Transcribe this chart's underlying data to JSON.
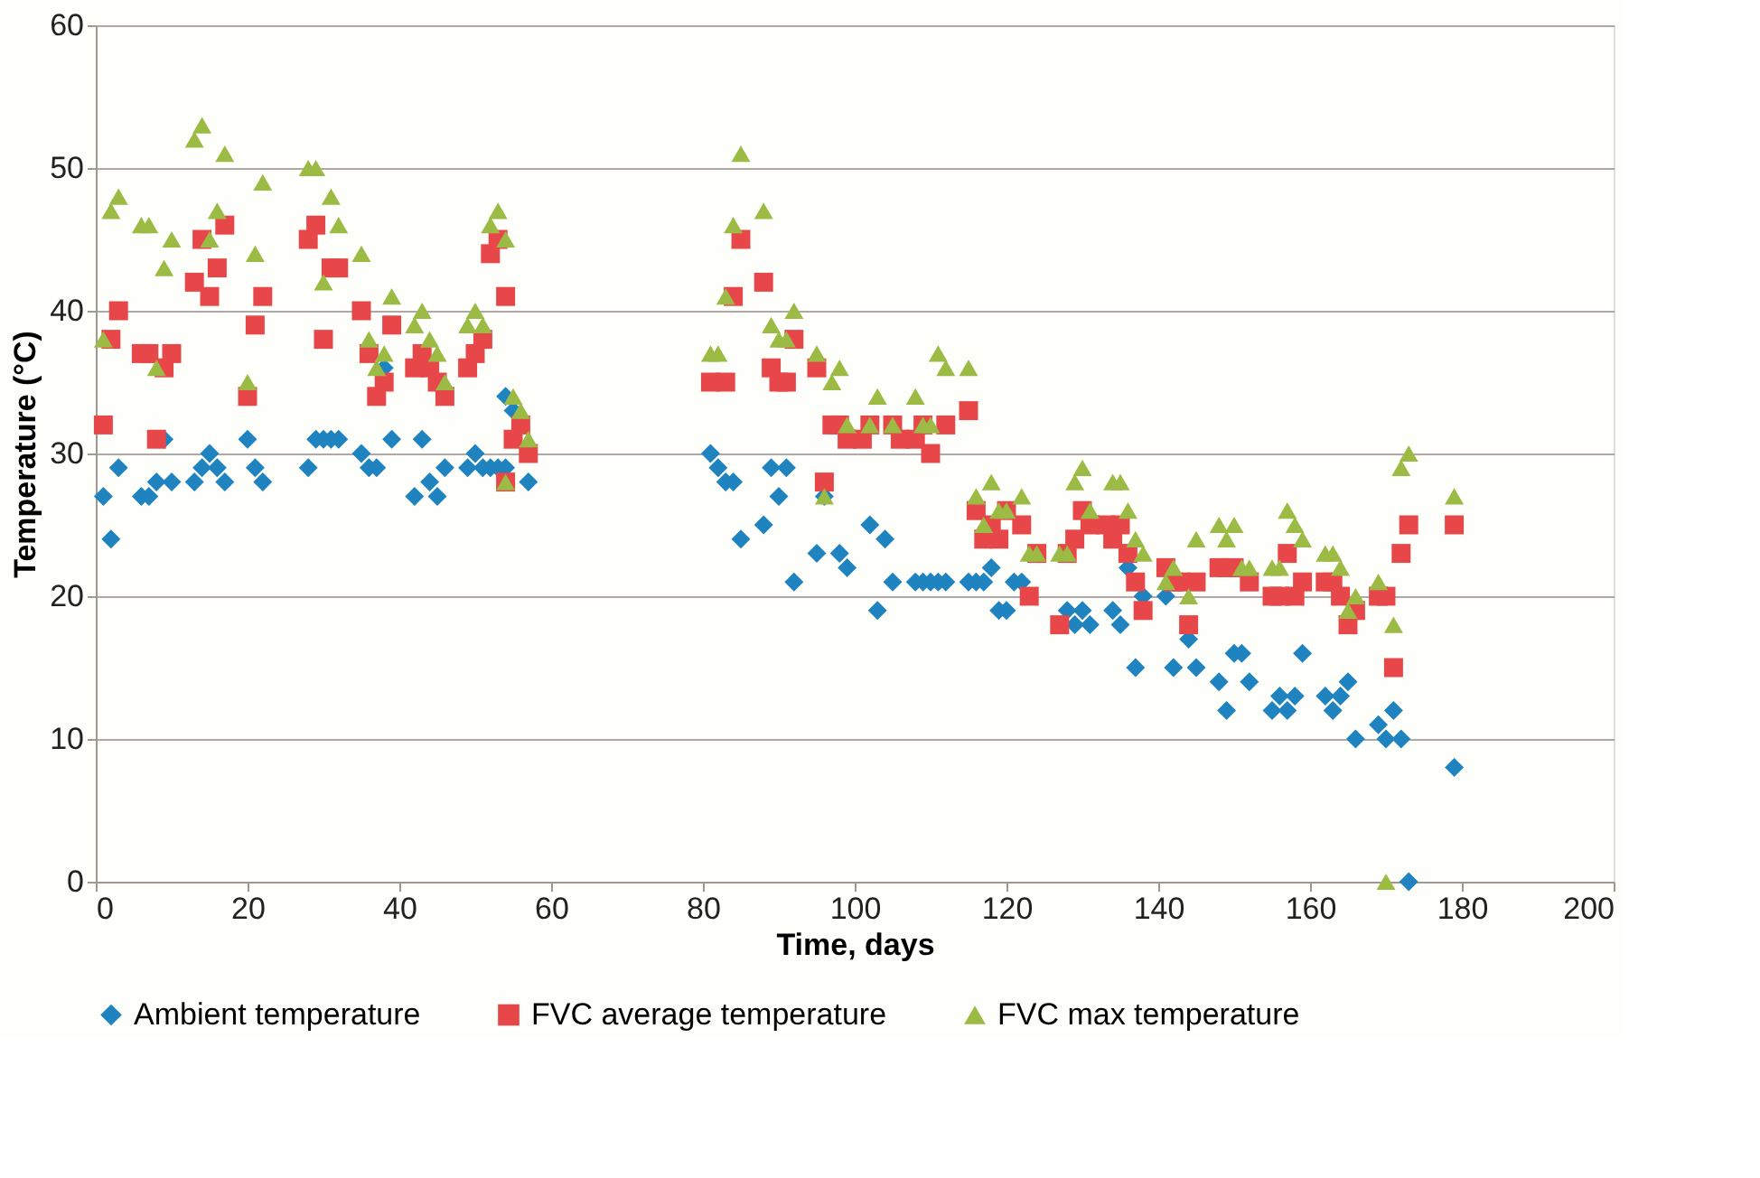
{
  "chart_data": {
    "type": "scatter",
    "xlabel": "Time, days",
    "ylabel": "Temperature (°C)",
    "xlim": [
      0,
      200
    ],
    "xticks": [
      0,
      20,
      40,
      60,
      80,
      100,
      120,
      140,
      160,
      180,
      200
    ],
    "ylim": [
      0,
      60
    ],
    "yticks": [
      0,
      10,
      20,
      30,
      40,
      50,
      60
    ],
    "grid": "y",
    "legend": "bottom",
    "series": [
      {
        "name": "Ambient temperature",
        "color": "#1f83c0",
        "marker": "diamond",
        "x": [
          1,
          2,
          3,
          6,
          7,
          8,
          9,
          10,
          13,
          14,
          15,
          16,
          17,
          20,
          21,
          22,
          28,
          29,
          30,
          31,
          32,
          35,
          36,
          37,
          38,
          39,
          42,
          43,
          44,
          45,
          46,
          49,
          50,
          51,
          52,
          53,
          54,
          54,
          55,
          57,
          81,
          82,
          83,
          84,
          85,
          88,
          89,
          90,
          91,
          92,
          95,
          96,
          98,
          99,
          102,
          103,
          104,
          105,
          108,
          109,
          110,
          111,
          112,
          115,
          116,
          117,
          118,
          119,
          120,
          121,
          122,
          128,
          129,
          130,
          131,
          134,
          135,
          136,
          137,
          138,
          141,
          142,
          144,
          145,
          148,
          149,
          150,
          151,
          152,
          155,
          156,
          157,
          158,
          159,
          162,
          163,
          164,
          165,
          166,
          169,
          170,
          171,
          172,
          173,
          179
        ],
        "values": [
          27,
          24,
          29,
          27,
          27,
          28,
          31,
          28,
          28,
          29,
          30,
          29,
          28,
          31,
          29,
          28,
          29,
          31,
          31,
          31,
          31,
          30,
          29,
          29,
          36,
          31,
          27,
          31,
          28,
          27,
          29,
          29,
          30,
          29,
          29,
          29,
          34,
          29,
          33,
          28,
          30,
          29,
          28,
          28,
          24,
          25,
          29,
          27,
          29,
          21,
          23,
          27,
          23,
          22,
          25,
          19,
          24,
          21,
          21,
          21,
          21,
          21,
          21,
          21,
          21,
          21,
          22,
          19,
          19,
          21,
          21,
          19,
          18,
          19,
          18,
          19,
          18,
          22,
          15,
          20,
          20,
          15,
          17,
          15,
          14,
          12,
          16,
          16,
          14,
          12,
          13,
          12,
          13,
          16,
          13,
          12,
          13,
          14,
          10,
          11,
          10,
          12,
          10,
          0,
          8
        ]
      },
      {
        "name": "FVC average temperature",
        "color": "#e8474a",
        "marker": "square",
        "x": [
          1,
          2,
          3,
          6,
          7,
          8,
          9,
          10,
          13,
          14,
          15,
          16,
          17,
          20,
          21,
          22,
          28,
          29,
          30,
          31,
          32,
          35,
          36,
          37,
          38,
          39,
          42,
          43,
          44,
          45,
          46,
          49,
          50,
          51,
          52,
          53,
          54,
          54,
          55,
          56,
          57,
          81,
          83,
          84,
          85,
          88,
          89,
          90,
          91,
          92,
          95,
          96,
          97,
          98,
          99,
          101,
          102,
          105,
          106,
          108,
          109,
          110,
          112,
          115,
          116,
          117,
          118,
          119,
          120,
          122,
          123,
          124,
          127,
          128,
          129,
          130,
          131,
          133,
          134,
          135,
          136,
          137,
          138,
          141,
          142,
          143,
          144,
          145,
          148,
          149,
          150,
          152,
          155,
          156,
          157,
          158,
          159,
          162,
          163,
          164,
          165,
          166,
          169,
          170,
          171,
          172,
          173,
          179
        ],
        "values": [
          32,
          38,
          40,
          37,
          37,
          31,
          36,
          37,
          42,
          45,
          41,
          43,
          46,
          34,
          39,
          41,
          45,
          46,
          38,
          43,
          43,
          40,
          37,
          34,
          35,
          39,
          36,
          37,
          36,
          35,
          34,
          36,
          37,
          38,
          44,
          45,
          41,
          28,
          31,
          32,
          30,
          35,
          35,
          41,
          45,
          42,
          36,
          35,
          35,
          38,
          36,
          28,
          32,
          32,
          31,
          31,
          32,
          32,
          31,
          31,
          32,
          30,
          32,
          33,
          26,
          24,
          25,
          24,
          26,
          25,
          20,
          23,
          18,
          23,
          24,
          26,
          25,
          25,
          24,
          25,
          23,
          21,
          19,
          22,
          21,
          21,
          18,
          21,
          22,
          22,
          22,
          21,
          20,
          20,
          23,
          20,
          21,
          21,
          21,
          20,
          18,
          19,
          20,
          20,
          15,
          23,
          25,
          25
        ]
      },
      {
        "name": "FVC max temperature",
        "color": "#9bbb45",
        "marker": "triangle",
        "x": [
          1,
          2,
          3,
          6,
          7,
          8,
          9,
          10,
          13,
          14,
          15,
          16,
          17,
          20,
          21,
          22,
          28,
          29,
          30,
          31,
          32,
          35,
          36,
          37,
          38,
          39,
          42,
          43,
          44,
          45,
          46,
          49,
          50,
          51,
          52,
          53,
          54,
          54,
          55,
          56,
          57,
          81,
          82,
          83,
          84,
          85,
          88,
          89,
          90,
          91,
          92,
          95,
          96,
          97,
          98,
          99,
          102,
          103,
          105,
          108,
          109,
          110,
          111,
          112,
          115,
          116,
          117,
          118,
          119,
          120,
          122,
          123,
          124,
          127,
          128,
          129,
          130,
          131,
          134,
          135,
          136,
          137,
          138,
          141,
          142,
          144,
          145,
          148,
          149,
          150,
          151,
          152,
          155,
          156,
          157,
          158,
          159,
          162,
          163,
          164,
          165,
          166,
          169,
          170,
          171,
          172,
          173,
          179
        ],
        "values": [
          38,
          47,
          48,
          46,
          46,
          36,
          43,
          45,
          52,
          53,
          45,
          47,
          51,
          35,
          44,
          49,
          50,
          50,
          42,
          48,
          46,
          44,
          38,
          36,
          37,
          41,
          39,
          40,
          38,
          37,
          35,
          39,
          40,
          39,
          46,
          47,
          45,
          28,
          34,
          33,
          31,
          37,
          37,
          41,
          46,
          51,
          47,
          39,
          38,
          38,
          40,
          37,
          27,
          35,
          36,
          32,
          32,
          34,
          32,
          34,
          32,
          32,
          37,
          36,
          36,
          27,
          25,
          28,
          26,
          26,
          27,
          23,
          23,
          23,
          23,
          28,
          29,
          26,
          28,
          28,
          26,
          24,
          23,
          21,
          22,
          20,
          24,
          25,
          24,
          25,
          22,
          22,
          22,
          22,
          26,
          25,
          24,
          23,
          23,
          22,
          19,
          20,
          21,
          0,
          18,
          29,
          30,
          27
        ]
      }
    ]
  }
}
